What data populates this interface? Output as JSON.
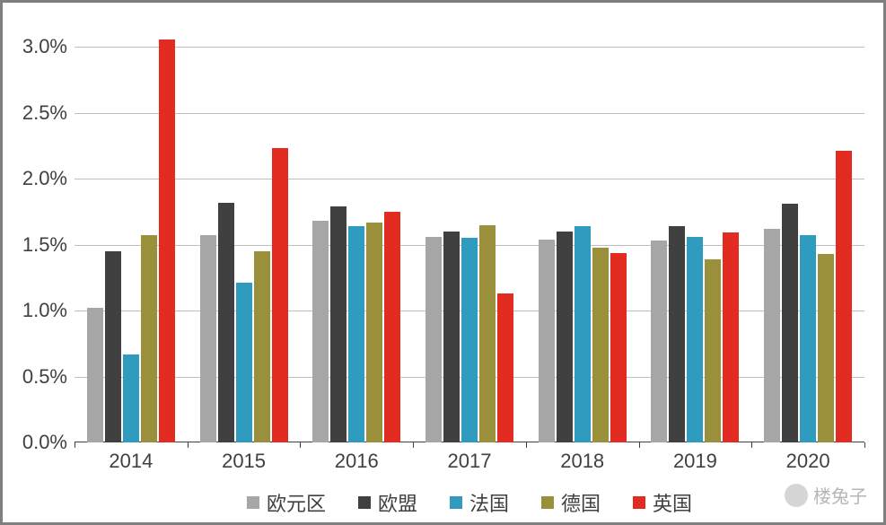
{
  "chart": {
    "type": "bar",
    "background_color": "#ffffff",
    "border_color": "#7f7f7f",
    "grid_color": "#bfbfbf",
    "axis_color": "#404040",
    "text_color": "#404040",
    "label_fontsize": 22,
    "ylim": [
      0.0,
      3.2
    ],
    "yticks": [
      0.0,
      0.5,
      1.0,
      1.5,
      2.0,
      2.5,
      3.0
    ],
    "ytick_labels": [
      "0.0%",
      "0.5%",
      "1.0%",
      "1.5%",
      "2.0%",
      "2.5%",
      "3.0%"
    ],
    "categories": [
      "2014",
      "2015",
      "2016",
      "2017",
      "2018",
      "2019",
      "2020"
    ],
    "series": [
      {
        "name": "欧元区",
        "color": "#a6a6a6"
      },
      {
        "name": "欧盟",
        "color": "#404040"
      },
      {
        "name": "法国",
        "color": "#2e9bbf"
      },
      {
        "name": "德国",
        "color": "#9a8f3b"
      },
      {
        "name": "英国",
        "color": "#e22b21"
      }
    ],
    "values": [
      [
        1.02,
        1.57,
        1.68,
        1.56,
        1.54,
        1.53,
        1.62
      ],
      [
        1.45,
        1.82,
        1.79,
        1.6,
        1.6,
        1.64,
        1.81
      ],
      [
        0.67,
        1.21,
        1.64,
        1.55,
        1.64,
        1.56,
        1.57
      ],
      [
        1.57,
        1.45,
        1.67,
        1.65,
        1.48,
        1.39,
        1.43
      ],
      [
        3.06,
        2.23,
        1.75,
        1.13,
        1.44,
        1.59,
        2.21
      ]
    ],
    "bar_width_ratio": 0.78,
    "group_inner_gap_ratio": 0.02
  },
  "watermark": {
    "text": "楼兔子"
  }
}
